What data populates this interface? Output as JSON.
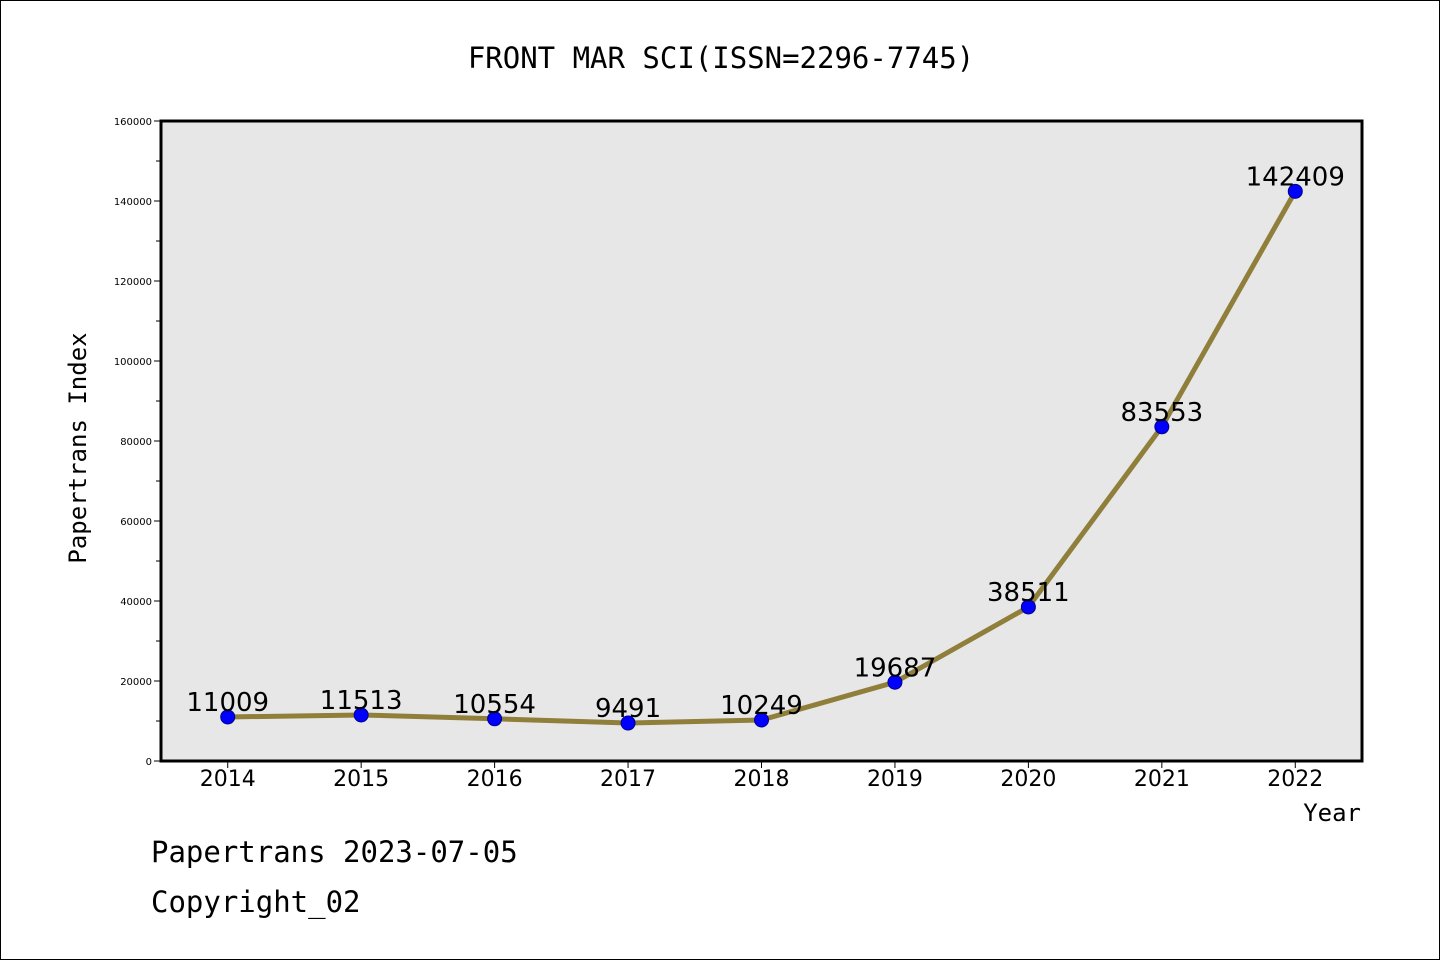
{
  "chart_data": {
    "type": "line",
    "title": "FRONT MAR SCI(ISSN=2296-7745)",
    "xlabel": "Year",
    "ylabel": "Papertrans Index",
    "categories": [
      "2014",
      "2015",
      "2016",
      "2017",
      "2018",
      "2019",
      "2020",
      "2021",
      "2022"
    ],
    "values": [
      11009,
      11513,
      10554,
      9491,
      10249,
      19687,
      38511,
      83553,
      142409
    ],
    "data_labels": [
      "11009",
      "11513",
      "10554",
      "9491",
      "10249",
      "19687",
      "38511",
      "83553",
      "142409"
    ],
    "ylim": [
      0,
      160000
    ],
    "yticks": [
      "0",
      "20000",
      "40000",
      "60000",
      "80000",
      "100000",
      "120000",
      "140000",
      "160000"
    ],
    "grid": false,
    "line_color": "#8f7f3a",
    "marker_color": "#0000ff",
    "plot_background": "#e7e7e7"
  },
  "footer": {
    "line1": "Papertrans 2023-07-05",
    "line2": "Copyright_02"
  }
}
